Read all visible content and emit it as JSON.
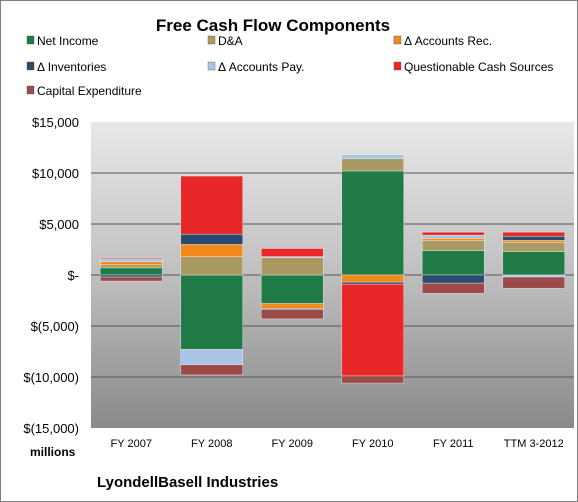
{
  "chart_data": {
    "type": "bar",
    "stacked": true,
    "title": "Free Cash Flow Components",
    "unit_label": "millions",
    "company": "LyondellBasell Industries",
    "categories": [
      "FY 2007",
      "FY 2008",
      "FY 2009",
      "FY 2010",
      "FY 2011",
      "TTM 3-2012"
    ],
    "ylim": [
      -15000,
      15000
    ],
    "yticks": [
      15000,
      10000,
      5000,
      0,
      -5000,
      -10000,
      -15000
    ],
    "ytick_labels": [
      "$15,000",
      "$10,000",
      "$5,000",
      "$-",
      "$(5,000)",
      "$(10,000)",
      "$(15,000)"
    ],
    "legend_position": "top",
    "series": [
      {
        "name": "Net Income",
        "color": "#1f7a45",
        "values": [
          700,
          -7300,
          -2800,
          10200,
          2400,
          2300
        ]
      },
      {
        "name": "D&A",
        "color": "#a89a62",
        "values": [
          300,
          1800,
          1700,
          1200,
          1000,
          900
        ]
      },
      {
        "name": "Δ Accounts Rec.",
        "color": "#f08a1c",
        "values": [
          300,
          1200,
          -500,
          -700,
          200,
          200
        ]
      },
      {
        "name": "Δ Inventories",
        "color": "#2c4a6e",
        "values": [
          -200,
          1000,
          -100,
          -200,
          -800,
          400
        ]
      },
      {
        "name": "Δ Accounts Pay.",
        "color": "#a8c4e6",
        "values": [
          300,
          -1500,
          100,
          400,
          300,
          -200
        ]
      },
      {
        "name": "Questionable Cash Sources",
        "color": "#e82828",
        "values": [
          100,
          5700,
          800,
          -9000,
          300,
          400
        ]
      },
      {
        "name": "Capital Expenditure",
        "color": "#9c4a4a",
        "values": [
          -400,
          -1000,
          -900,
          -700,
          -1000,
          -1100
        ]
      }
    ]
  }
}
